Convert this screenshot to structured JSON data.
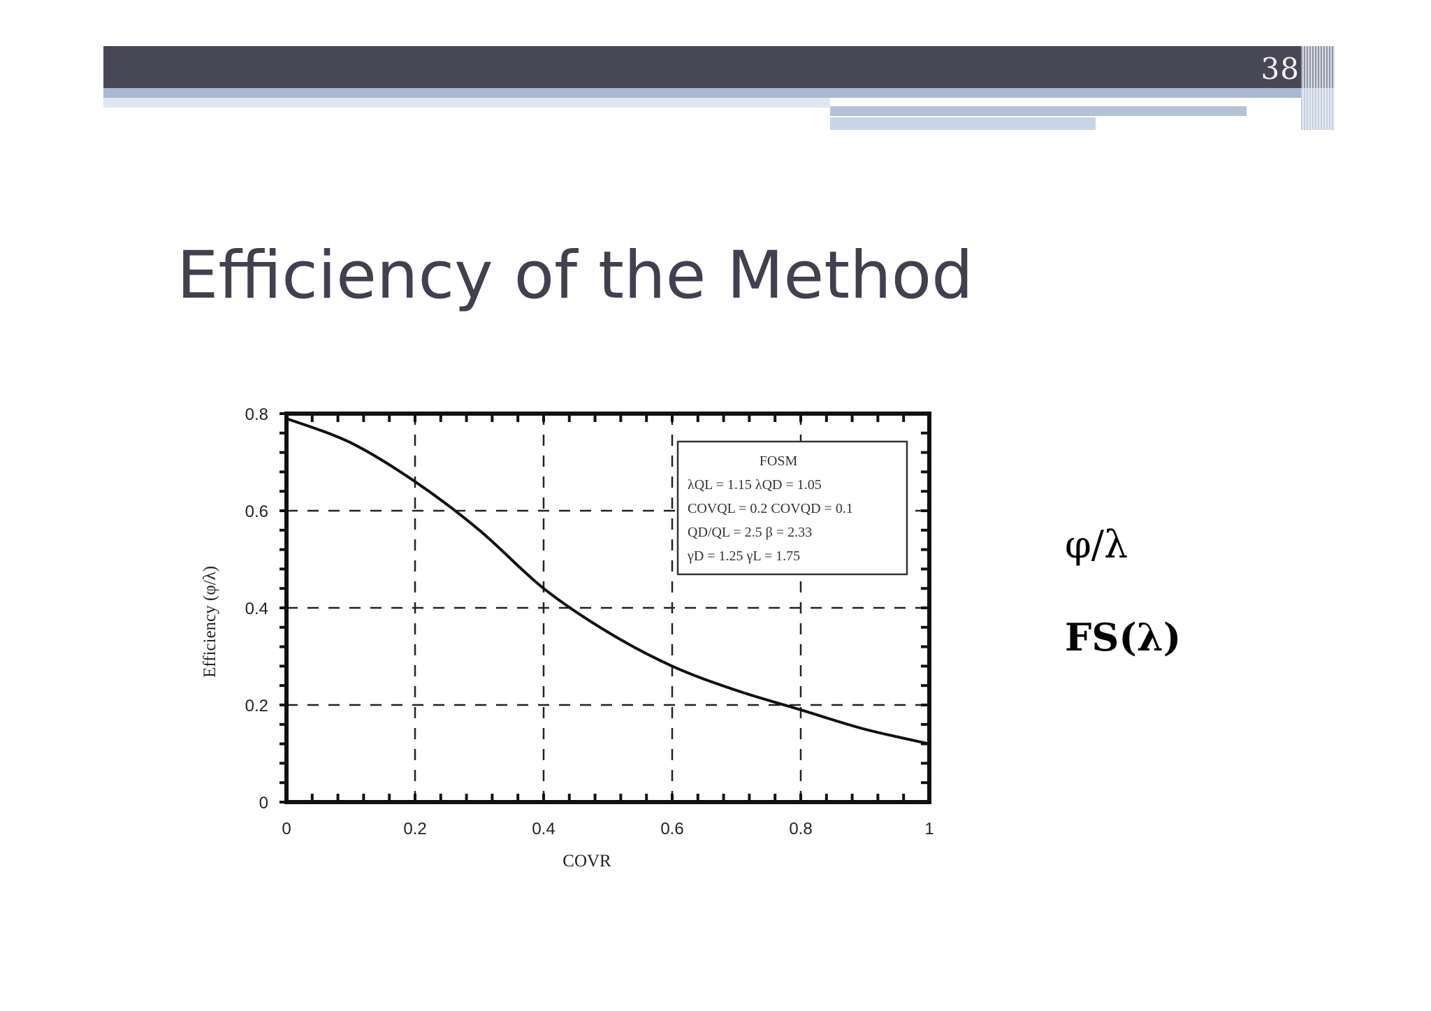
{
  "slide": {
    "number": "38",
    "title": "Efficiency of the Method",
    "side_label_1": "φ/λ",
    "side_label_2": "FS(λ)"
  },
  "colors": {
    "header_bar": "#484756",
    "header_stripe": "#a9b9d1",
    "title_text": "#42404f"
  },
  "chart_data": {
    "type": "line",
    "title": "",
    "xlabel": "COVR",
    "ylabel": "Efficiency (φ/λ)",
    "xlim": [
      0,
      1
    ],
    "ylim": [
      0,
      0.8
    ],
    "xticks": [
      "0",
      "0.2",
      "0.4",
      "0.6",
      "0.8",
      "1"
    ],
    "yticks": [
      "0",
      "0.2",
      "0.4",
      "0.6",
      "0.8"
    ],
    "grid": "dashed",
    "legend_position": "top-right",
    "legend_lines": [
      "FOSM",
      "λQL = 1.15   λQD = 1.05",
      "COVQL = 0.2   COVQD = 0.1",
      "QD/QL = 2.5   β = 2.33",
      "γD = 1.25   γL = 1.75"
    ],
    "series": [
      {
        "x": [
          0,
          0.1,
          0.2,
          0.3,
          0.4,
          0.5,
          0.6,
          0.7,
          0.8,
          0.9,
          1.0
        ],
        "y": [
          0.79,
          0.74,
          0.66,
          0.56,
          0.44,
          0.35,
          0.28,
          0.23,
          0.19,
          0.15,
          0.12
        ]
      }
    ]
  }
}
